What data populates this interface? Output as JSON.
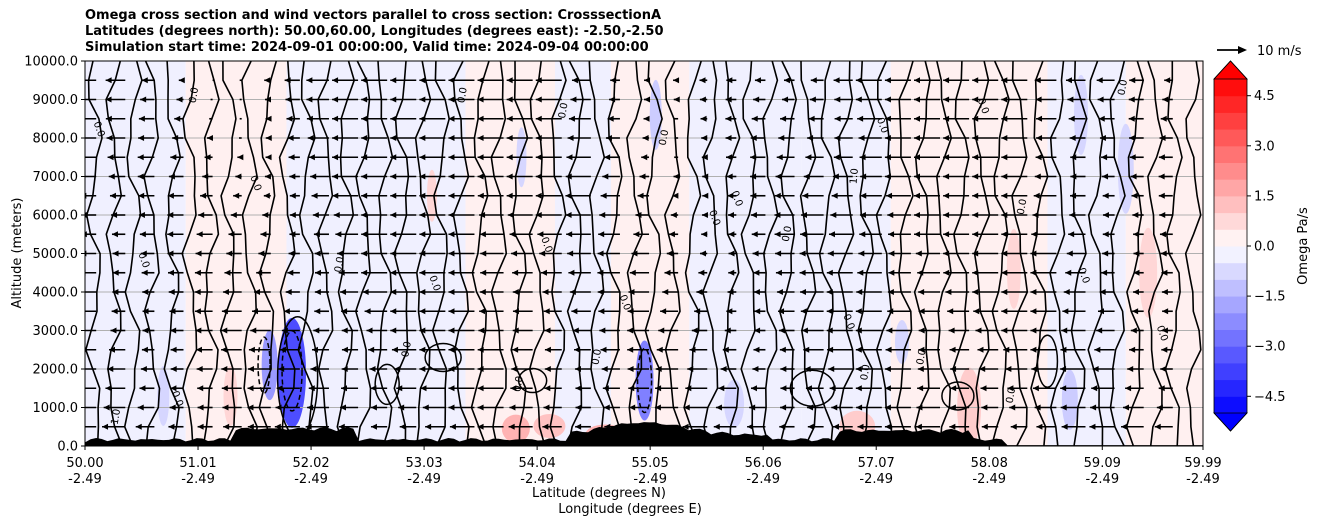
{
  "chart_data": {
    "type": "cross-section",
    "title_lines": [
      "Omega cross section and wind vectors parallel to cross section: CrosssectionA",
      "Latitudes (degrees north): 50.00,60.00, Longitudes (degrees east): -2.50,-2.50",
      "Simulation start time: 2024-09-01 00:00:00, Valid time: 2024-09-04 00:00:00"
    ],
    "ylabel": "Altitude (meters)",
    "xlabel_lat": "Latitude (degrees N)",
    "xlabel_lon": "Longitude (degrees E)",
    "ylim": [
      0,
      10000
    ],
    "y_ticks": [
      {
        "value": 0,
        "label": "0.0"
      },
      {
        "value": 1000,
        "label": "1000.0"
      },
      {
        "value": 2000,
        "label": "2000.0"
      },
      {
        "value": 3000,
        "label": "3000.0"
      },
      {
        "value": 4000,
        "label": "4000.0"
      },
      {
        "value": 5000,
        "label": "5000.0"
      },
      {
        "value": 6000,
        "label": "6000.0"
      },
      {
        "value": 7000,
        "label": "7000.0"
      },
      {
        "value": 8000,
        "label": "8000.0"
      },
      {
        "value": 9000,
        "label": "9000.0"
      },
      {
        "value": 10000,
        "label": "10000.0"
      }
    ],
    "xlim": [
      50.0,
      59.99
    ],
    "x_ticks": [
      {
        "lat": 50.0,
        "lat_label": "50.00",
        "lon_label": "-2.49"
      },
      {
        "lat": 51.01,
        "lat_label": "51.01",
        "lon_label": "-2.49"
      },
      {
        "lat": 52.02,
        "lat_label": "52.02",
        "lon_label": "-2.49"
      },
      {
        "lat": 53.03,
        "lat_label": "53.03",
        "lon_label": "-2.49"
      },
      {
        "lat": 54.04,
        "lat_label": "54.04",
        "lon_label": "-2.49"
      },
      {
        "lat": 55.05,
        "lat_label": "55.05",
        "lon_label": "-2.49"
      },
      {
        "lat": 56.06,
        "lat_label": "56.06",
        "lon_label": "-2.49"
      },
      {
        "lat": 57.07,
        "lat_label": "57.07",
        "lon_label": "-2.49"
      },
      {
        "lat": 58.08,
        "lat_label": "58.08",
        "lon_label": "-2.49"
      },
      {
        "lat": 59.09,
        "lat_label": "59.09",
        "lon_label": "-2.49"
      },
      {
        "lat": 59.99,
        "lat_label": "59.99",
        "lon_label": "-2.49"
      }
    ],
    "grid": true,
    "colorbar": {
      "label": "Omega Pa/s",
      "range": [
        -5.0,
        5.0
      ],
      "ticks": [
        {
          "value": 4.5,
          "label": "4.5"
        },
        {
          "value": 3.0,
          "label": "3.0"
        },
        {
          "value": 1.5,
          "label": "1.5"
        },
        {
          "value": 0.0,
          "label": "0.0"
        },
        {
          "value": -1.5,
          "label": "−1.5"
        },
        {
          "value": -3.0,
          "label": "−3.0"
        },
        {
          "value": -4.5,
          "label": "−4.5"
        }
      ],
      "extend": "both",
      "colormap": "bwr"
    },
    "quiver_key": {
      "label": "10 m/s",
      "speed": 10
    },
    "contour_label": "0.0",
    "contour_labels_extra": [
      "-1.0",
      "1.0"
    ]
  },
  "colors": {
    "positive": "#ff0000",
    "negative": "#0000ff",
    "neutral": "#ffffff",
    "grid": "#b0b0b0",
    "terrain": "#000000"
  }
}
